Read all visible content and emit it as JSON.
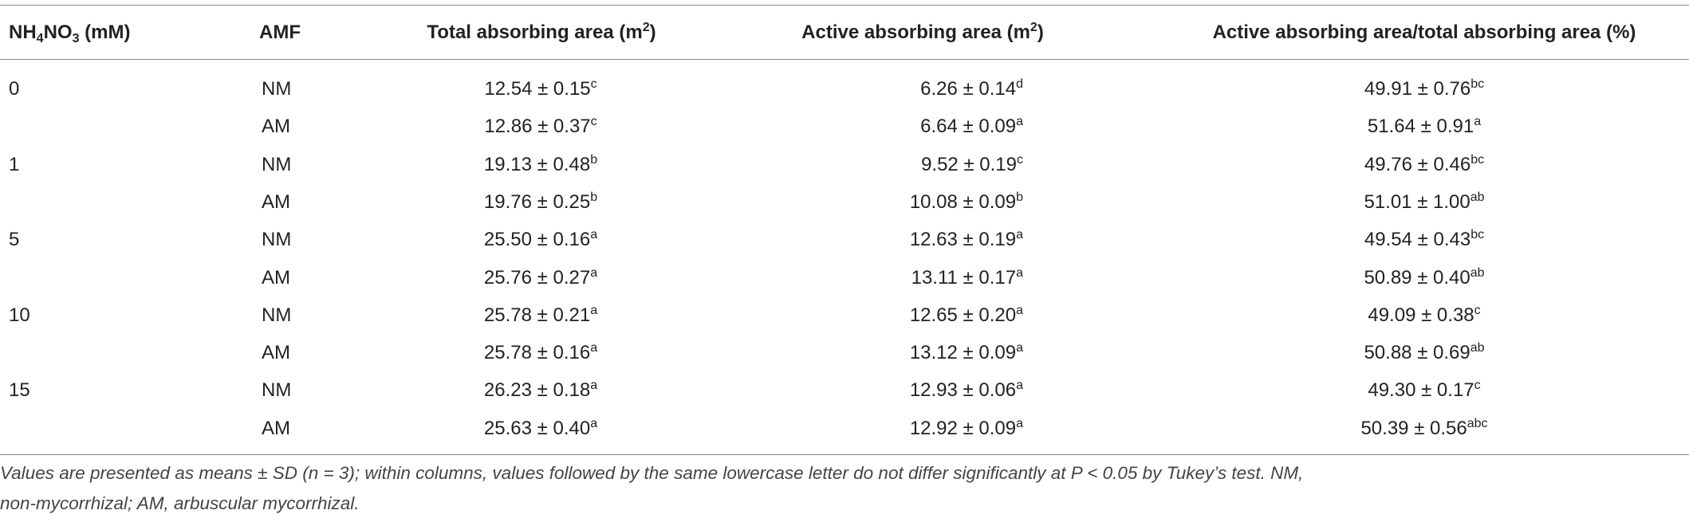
{
  "table": {
    "columns": [
      {
        "parts": [
          {
            "text": "NH"
          },
          {
            "text": "4",
            "script": "sub"
          },
          {
            "text": "NO"
          },
          {
            "text": "3",
            "script": "sub"
          },
          {
            "text": " (mM)"
          }
        ]
      },
      {
        "parts": [
          {
            "text": "AMF"
          }
        ]
      },
      {
        "parts": [
          {
            "text": "Total absorbing area (m"
          },
          {
            "text": "2",
            "script": "sup"
          },
          {
            "text": ")"
          }
        ]
      },
      {
        "parts": [
          {
            "text": "Active absorbing area (m"
          },
          {
            "text": "2",
            "script": "sup"
          },
          {
            "text": ")"
          }
        ]
      },
      {
        "parts": [
          {
            "text": "Active absorbing area/total absorbing area (%)"
          }
        ]
      }
    ],
    "groups": [
      {
        "level": "0",
        "rows": [
          {
            "amf": "NM",
            "cells": [
              {
                "value": "12.54 ± 0.15",
                "sup": "c"
              },
              {
                "value": "6.26 ± 0.14",
                "sup": "d"
              },
              {
                "value": "49.91 ± 0.76",
                "sup": "bc"
              }
            ]
          },
          {
            "amf": "AM",
            "cells": [
              {
                "value": "12.86 ± 0.37",
                "sup": "c"
              },
              {
                "value": "6.64 ± 0.09",
                "sup": "a"
              },
              {
                "value": "51.64 ± 0.91",
                "sup": "a"
              }
            ]
          }
        ]
      },
      {
        "level": "1",
        "rows": [
          {
            "amf": "NM",
            "cells": [
              {
                "value": "19.13 ± 0.48",
                "sup": "b"
              },
              {
                "value": "9.52 ± 0.19",
                "sup": "c"
              },
              {
                "value": "49.76 ± 0.46",
                "sup": "bc"
              }
            ]
          },
          {
            "amf": "AM",
            "cells": [
              {
                "value": "19.76 ± 0.25",
                "sup": "b"
              },
              {
                "value": "10.08 ± 0.09",
                "sup": "b"
              },
              {
                "value": "51.01 ± 1.00",
                "sup": "ab"
              }
            ]
          }
        ]
      },
      {
        "level": "5",
        "rows": [
          {
            "amf": "NM",
            "cells": [
              {
                "value": "25.50 ± 0.16",
                "sup": "a"
              },
              {
                "value": "12.63 ± 0.19",
                "sup": "a"
              },
              {
                "value": "49.54 ± 0.43",
                "sup": "bc"
              }
            ]
          },
          {
            "amf": "AM",
            "cells": [
              {
                "value": "25.76 ± 0.27",
                "sup": "a"
              },
              {
                "value": "13.11 ± 0.17",
                "sup": "a"
              },
              {
                "value": "50.89 ± 0.40",
                "sup": "ab"
              }
            ]
          }
        ]
      },
      {
        "level": "10",
        "rows": [
          {
            "amf": "NM",
            "cells": [
              {
                "value": "25.78 ± 0.21",
                "sup": "a"
              },
              {
                "value": "12.65 ± 0.20",
                "sup": "a"
              },
              {
                "value": "49.09 ± 0.38",
                "sup": "c"
              }
            ]
          },
          {
            "amf": "AM",
            "cells": [
              {
                "value": "25.78 ± 0.16",
                "sup": "a"
              },
              {
                "value": "13.12 ± 0.09",
                "sup": "a"
              },
              {
                "value": "50.88 ± 0.69",
                "sup": "ab"
              }
            ]
          }
        ]
      },
      {
        "level": "15",
        "rows": [
          {
            "amf": "NM",
            "cells": [
              {
                "value": "26.23 ± 0.18",
                "sup": "a"
              },
              {
                "value": "12.93 ± 0.06",
                "sup": "a"
              },
              {
                "value": "49.30 ± 0.17",
                "sup": "c"
              }
            ]
          },
          {
            "amf": "AM",
            "cells": [
              {
                "value": "25.63 ± 0.40",
                "sup": "a"
              },
              {
                "value": "12.92 ± 0.09",
                "sup": "a"
              },
              {
                "value": "50.39 ± 0.56",
                "sup": "abc"
              }
            ]
          }
        ]
      }
    ],
    "footnote": [
      "Values are presented as means ± SD (n = 3); within columns, values followed by the same lowercase letter do not differ significantly at P < 0.05 by Tukey’s test. NM,",
      "non-mycorrhizal; AM, arbuscular mycorrhizal."
    ]
  }
}
